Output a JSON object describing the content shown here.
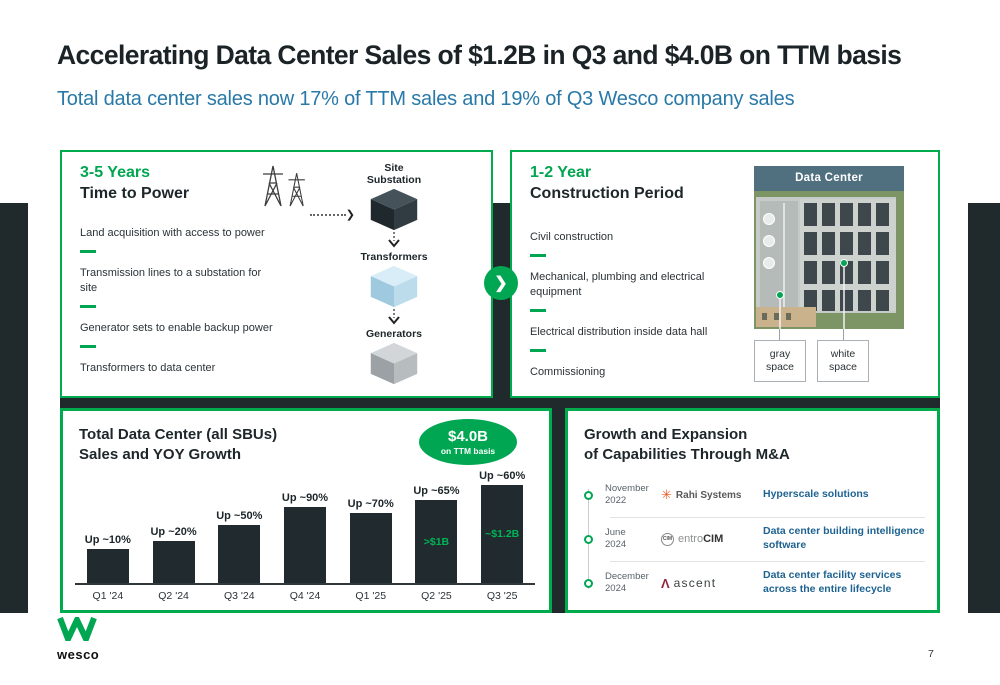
{
  "header": {
    "title": "Accelerating Data Center Sales of $1.2B in Q3 and $4.0B on TTM basis",
    "subtitle": "Total data center sales now 17% of TTM sales and 19% of Q3 Wesco company sales"
  },
  "icons": {
    "chevron_right": "❯"
  },
  "time_to_power": {
    "duration": "3-5 Years",
    "heading": "Time to Power",
    "items": [
      "Land acquisition with access to power",
      "Transmission lines to a substation for site",
      "Generator sets to enable backup power",
      "Transformers to data center"
    ],
    "diagram": {
      "site_substation_label": "Site Substation",
      "transformers_label": "Transformers",
      "generators_label": "Generators"
    }
  },
  "construction": {
    "duration": "1-2 Year",
    "heading": "Construction Period",
    "items": [
      "Civil construction",
      "Mechanical, plumbing and electrical equipment",
      "Electrical distribution inside data hall",
      "Commissioning"
    ],
    "image": {
      "header": "Data Center",
      "label_gray": "gray space",
      "label_white": "white space"
    }
  },
  "sales_panel": {
    "title_line1": "Total Data Center (all SBUs)",
    "title_line2": "Sales and YOY Growth",
    "badge_value": "$4.0B",
    "badge_caption": "on TTM basis"
  },
  "chart_data": {
    "type": "bar",
    "title": "Total Data Center (all SBUs) Sales and YOY Growth",
    "categories": [
      "Q1 '24",
      "Q2 '24",
      "Q3 '24",
      "Q4 '24",
      "Q1 '25",
      "Q2 '25",
      "Q3 '25"
    ],
    "series": [
      {
        "name": "Data center sales (relative bar height, unlabeled axis)",
        "values_relative": [
          34,
          42,
          58,
          76,
          70,
          83,
          98
        ]
      }
    ],
    "growth_labels": [
      "Up ~10%",
      "Up ~20%",
      "Up ~50%",
      "Up ~90%",
      "Up ~70%",
      "Up ~65%",
      "Up ~60%"
    ],
    "bar_annotations": [
      "",
      "",
      "",
      "",
      "",
      ">$1B",
      "~$1.2B"
    ],
    "callout": "$4.0B on TTM basis",
    "xlabel": "",
    "ylabel": "",
    "grid": false,
    "legend": false,
    "bar_color": "#212B2F",
    "annotation_color": "#00A651"
  },
  "ma_panel": {
    "title_line1": "Growth and Expansion",
    "title_line2": "of Capabilities Through M&A",
    "rows": [
      {
        "date_line1": "November",
        "date_line2": "2022",
        "company": "Rahi Systems",
        "description": "Hyperscale solutions"
      },
      {
        "date_line1": "June",
        "date_line2": "2024",
        "logo_badge": "CIM",
        "company_light": "entro",
        "company_bold": "CIM",
        "description": "Data center building intelligence software"
      },
      {
        "date_line1": "December",
        "date_line2": "2024",
        "company": "ascent",
        "description": "Data center facility services across the entire lifecycle"
      }
    ]
  },
  "footer": {
    "logo_text": "wesco",
    "page_number": "7"
  },
  "colors": {
    "accent_green": "#00A651",
    "dark_band": "#20292C",
    "bar_dark": "#212B2F",
    "steel_blue_subtitle": "#2979A8",
    "desc_blue": "#1E6391",
    "slate_header": "#51707F",
    "rahi_orange": "#F15A29",
    "ascent_maroon": "#8E2A3C"
  }
}
